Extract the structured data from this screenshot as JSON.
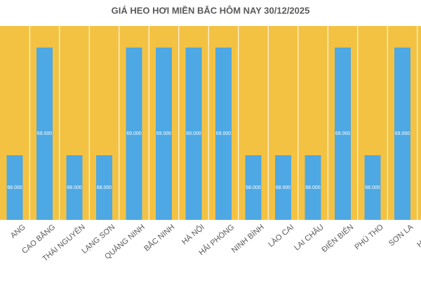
{
  "chart_data": {
    "type": "bar",
    "title": "GIÁ HEO HƠI MIỀN BẮC HÔM NAY 30/12/2025",
    "categories": [
      "ANG",
      "CAO BẰNG",
      "THÁI NGUYÊN",
      "LẠNG SƠN",
      "QUẢNG NINH",
      "BẮC NINH",
      "HÀ NỘI",
      "HẢI PHÒNG",
      "NINH BÌNH",
      "LÀO CAI",
      "LAI CHÂU",
      "ĐIỆN BIÊN",
      "PHÚ THO",
      "SƠN LA",
      "HƯNG Y"
    ],
    "values": [
      68000,
      69000,
      68000,
      68000,
      69000,
      69000,
      69000,
      69000,
      68000,
      68000,
      68000,
      69000,
      68000,
      69000,
      null
    ],
    "value_labels": [
      "68.000",
      "69.000",
      "68.000",
      "68.000",
      "69.000",
      "69.000",
      "69.000",
      "69.000",
      "68.000",
      "68.000",
      "68.000",
      "69.000",
      "68.000",
      "69.000",
      null
    ],
    "color": "#4ea8e3",
    "background": "#f4c243",
    "ylim": [
      67400,
      69200
    ]
  }
}
